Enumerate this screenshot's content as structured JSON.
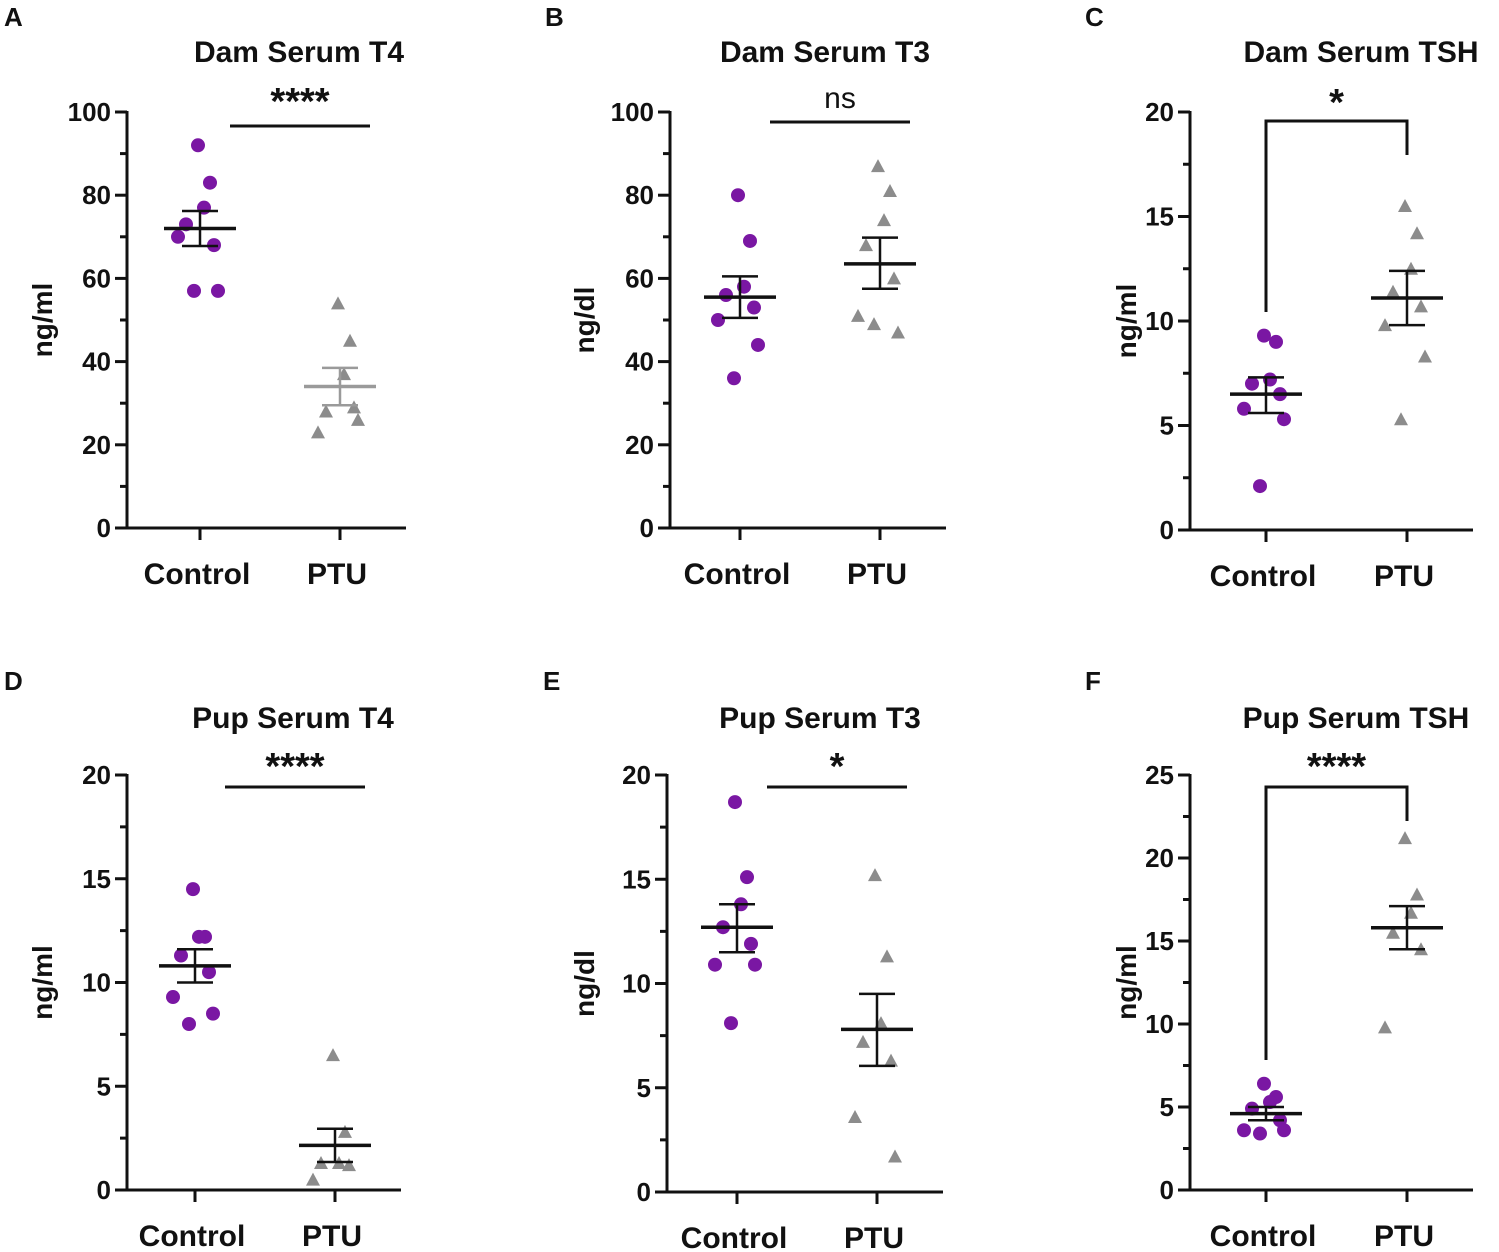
{
  "colors": {
    "control": "#7a17a3",
    "ptu": "#8c8c8c",
    "axis": "#111111"
  },
  "chart_data": [
    {
      "panel": "A",
      "type": "scatter",
      "title": "Dam Serum T4",
      "ylabel": "ng/ml",
      "categories": [
        "Control",
        "PTU"
      ],
      "ylim": [
        0,
        100
      ],
      "yticks": [
        0,
        20,
        40,
        60,
        80,
        100
      ],
      "yticklabels": [
        "0",
        "20",
        "40",
        "60",
        "80",
        "100"
      ],
      "series": [
        {
          "name": "Control",
          "marker": "circle",
          "values": [
            92,
            83,
            77,
            73,
            68,
            70,
            57,
            57
          ],
          "mean": 72,
          "sem_low": 67.8,
          "sem_high": 76.2
        },
        {
          "name": "PTU",
          "marker": "triangle",
          "values": [
            54,
            45,
            37,
            28,
            29,
            23,
            26
          ],
          "mean": 34,
          "sem_low": 29.5,
          "sem_high": 38.5
        }
      ],
      "significance": {
        "label": "****",
        "style": "flat"
      }
    },
    {
      "panel": "B",
      "type": "scatter",
      "title": "Dam Serum T3",
      "ylabel": "ng/dl",
      "categories": [
        "Control",
        "PTU"
      ],
      "ylim": [
        0,
        100
      ],
      "yticks": [
        0,
        20,
        40,
        60,
        80,
        100
      ],
      "yticklabels": [
        "0",
        "20",
        "40",
        "60",
        "80",
        "100"
      ],
      "series": [
        {
          "name": "Control",
          "marker": "circle",
          "values": [
            80,
            69,
            58,
            56,
            53,
            50,
            44,
            36
          ],
          "mean": 55.5,
          "sem_low": 50.5,
          "sem_high": 60.5
        },
        {
          "name": "PTU",
          "marker": "triangle",
          "values": [
            87,
            81,
            74,
            68,
            60,
            51,
            47,
            49
          ],
          "mean": 63.5,
          "sem_low": 57.5,
          "sem_high": 69.8
        }
      ],
      "significance": {
        "label": "ns",
        "style": "flat"
      }
    },
    {
      "panel": "C",
      "type": "scatter",
      "title": "Dam Serum TSH",
      "ylabel": "ng/ml",
      "categories": [
        "Control",
        "PTU"
      ],
      "ylim": [
        0,
        20
      ],
      "yticks": [
        0,
        5,
        10,
        15,
        20
      ],
      "yticklabels": [
        "0",
        "5",
        "10",
        "15",
        "20"
      ],
      "series": [
        {
          "name": "Control",
          "marker": "circle",
          "values": [
            9.3,
            9.0,
            7.2,
            7.0,
            6.5,
            5.8,
            5.3,
            2.1
          ],
          "mean": 6.5,
          "sem_low": 5.6,
          "sem_high": 7.3
        },
        {
          "name": "PTU",
          "marker": "triangle",
          "values": [
            15.5,
            14.2,
            12.5,
            11.4,
            10.7,
            9.8,
            8.3,
            5.3
          ],
          "mean": 11.1,
          "sem_low": 9.8,
          "sem_high": 12.4
        }
      ],
      "significance": {
        "label": "*",
        "style": "bracket"
      }
    },
    {
      "panel": "D",
      "type": "scatter",
      "title": "Pup Serum T4",
      "ylabel": "ng/ml",
      "categories": [
        "Control",
        "PTU"
      ],
      "ylim": [
        0,
        20
      ],
      "yticks": [
        0,
        5,
        10,
        15,
        20
      ],
      "yticklabels": [
        "0",
        "5",
        "10",
        "15",
        "20"
      ],
      "series": [
        {
          "name": "Control",
          "marker": "circle",
          "values": [
            14.5,
            12.2,
            12.2,
            11.3,
            10.5,
            9.3,
            8.5,
            8.0
          ],
          "mean": 10.8,
          "sem_low": 10.0,
          "sem_high": 11.6
        },
        {
          "name": "PTU",
          "marker": "triangle",
          "values": [
            6.5,
            2.8,
            1.3,
            1.3,
            1.2,
            0.5
          ],
          "mean": 2.15,
          "sem_low": 1.35,
          "sem_high": 2.95
        }
      ],
      "significance": {
        "label": "****",
        "style": "flat"
      }
    },
    {
      "panel": "E",
      "type": "scatter",
      "title": "Pup Serum T3",
      "ylabel": "ng/dl",
      "categories": [
        "Control",
        "PTU"
      ],
      "ylim": [
        0,
        20
      ],
      "yticks": [
        0,
        5,
        10,
        15,
        20
      ],
      "yticklabels": [
        "0",
        "5",
        "10",
        "15",
        "20"
      ],
      "series": [
        {
          "name": "Control",
          "marker": "circle",
          "values": [
            18.7,
            15.1,
            13.8,
            12.7,
            11.9,
            10.9,
            10.9,
            8.1
          ],
          "mean": 12.7,
          "sem_low": 11.5,
          "sem_high": 13.8
        },
        {
          "name": "PTU",
          "marker": "triangle",
          "values": [
            15.2,
            11.3,
            8.1,
            7.2,
            6.3,
            3.6,
            1.7
          ],
          "mean": 7.8,
          "sem_low": 6.05,
          "sem_high": 9.5
        }
      ],
      "significance": {
        "label": "*",
        "style": "flat"
      }
    },
    {
      "panel": "F",
      "type": "scatter",
      "title": "Pup Serum TSH",
      "ylabel": "ng/ml",
      "categories": [
        "Control",
        "PTU"
      ],
      "ylim": [
        0,
        25
      ],
      "yticks": [
        0,
        5,
        10,
        15,
        20,
        25
      ],
      "yticklabels": [
        "0",
        "5",
        "10",
        "15",
        "20",
        "25"
      ],
      "series": [
        {
          "name": "Control",
          "marker": "circle",
          "values": [
            6.4,
            5.6,
            5.3,
            4.9,
            4.2,
            3.6,
            3.6,
            3.4
          ],
          "mean": 4.6,
          "sem_low": 4.2,
          "sem_high": 5.0
        },
        {
          "name": "PTU",
          "marker": "triangle",
          "values": [
            21.2,
            17.8,
            16.7,
            15.5,
            14.5,
            9.8
          ],
          "mean": 15.8,
          "sem_low": 14.5,
          "sem_high": 17.1
        }
      ],
      "significance": {
        "label": "****",
        "style": "bracket"
      }
    }
  ]
}
